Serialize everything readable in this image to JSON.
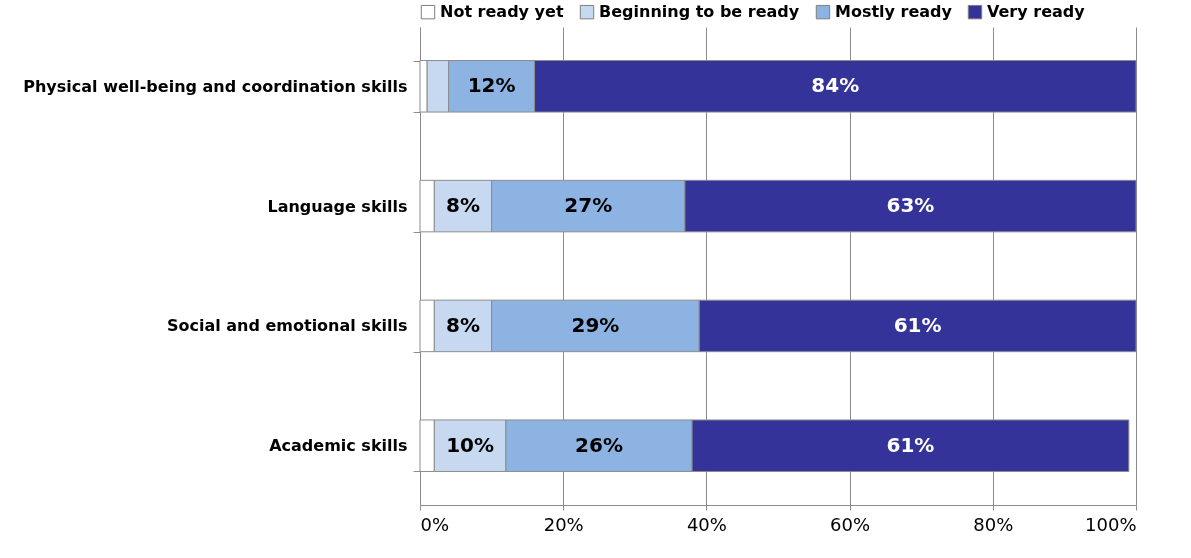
{
  "chart_data": {
    "type": "bar",
    "orientation": "horizontal",
    "stacked": true,
    "categories": [
      "Physical well-being and coordination skills",
      "Language skills",
      "Social and emotional skills",
      "Academic skills"
    ],
    "series": [
      {
        "name": "Not ready yet",
        "color": "#ffffff",
        "values": [
          1,
          2,
          2,
          2
        ]
      },
      {
        "name": "Beginning to be ready",
        "color": "#c6d9f1",
        "values": [
          3,
          8,
          8,
          10
        ],
        "value_labels": [
          null,
          "8%",
          "8%",
          "10%"
        ]
      },
      {
        "name": "Mostly ready",
        "color": "#8db3e2",
        "values": [
          12,
          27,
          29,
          26
        ],
        "value_labels": [
          "12%",
          "27%",
          "29%",
          "26%"
        ]
      },
      {
        "name": "Very ready",
        "color": "#333399",
        "values": [
          84,
          63,
          61,
          61
        ],
        "value_labels": [
          "84%",
          "63%",
          "61%",
          "61%"
        ]
      }
    ],
    "xlim": [
      0,
      100
    ],
    "xticks": [
      {
        "value": 0,
        "label": "0%"
      },
      {
        "value": 20,
        "label": "20%"
      },
      {
        "value": 40,
        "label": "40%"
      },
      {
        "value": 60,
        "label": "60%"
      },
      {
        "value": 80,
        "label": "80%"
      },
      {
        "value": 100,
        "label": "100%"
      }
    ],
    "grid": "x",
    "legend": "top"
  }
}
